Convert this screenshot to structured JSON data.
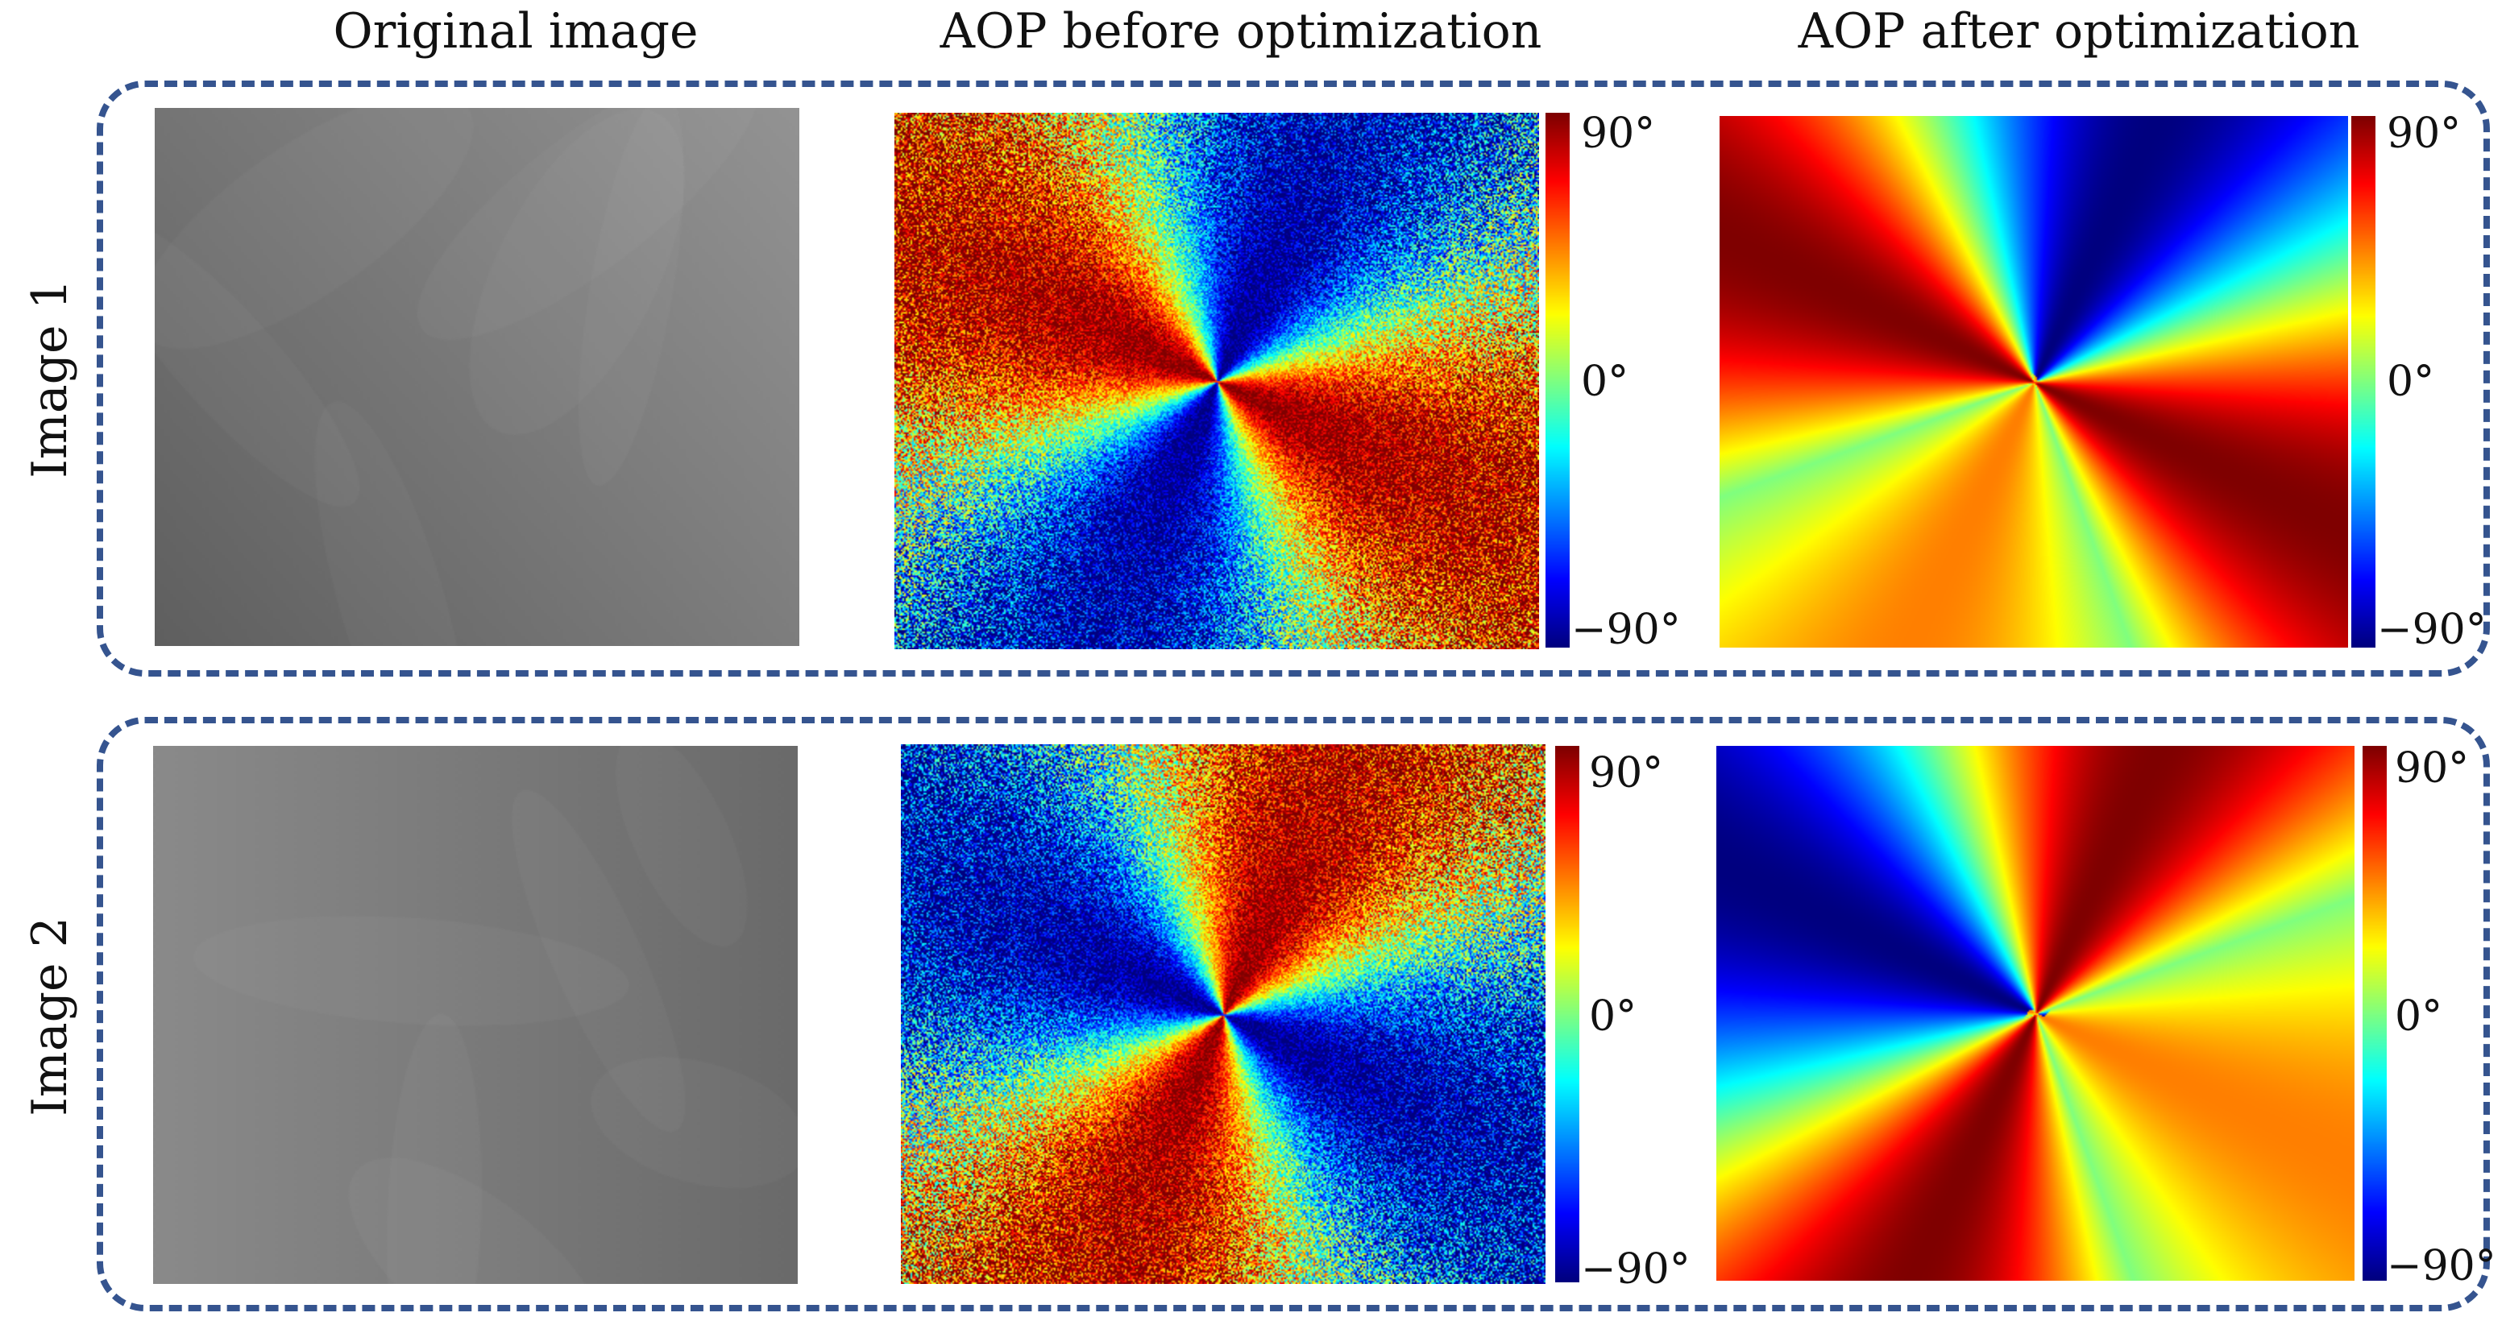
{
  "figure": {
    "columns": [
      "Original image",
      "AOP before optimization",
      "AOP after optimization"
    ],
    "rows": [
      "Image 1",
      "Image 2"
    ],
    "colorbar": {
      "max": "90°",
      "mid": "0°",
      "min": "−90°"
    }
  },
  "colors": {
    "frame": "#35548f"
  },
  "images": [
    {
      "row": "Image 1",
      "original_shade": "gray gradient, darker toward bottom-left",
      "before_center": [
        0.5,
        0.5
      ],
      "after_center": [
        0.5,
        0.5
      ]
    },
    {
      "row": "Image 2",
      "original_shade": "gray gradient, darker toward right",
      "before_center": [
        0.5,
        0.5
      ],
      "after_center": [
        0.5,
        0.5
      ]
    }
  ]
}
